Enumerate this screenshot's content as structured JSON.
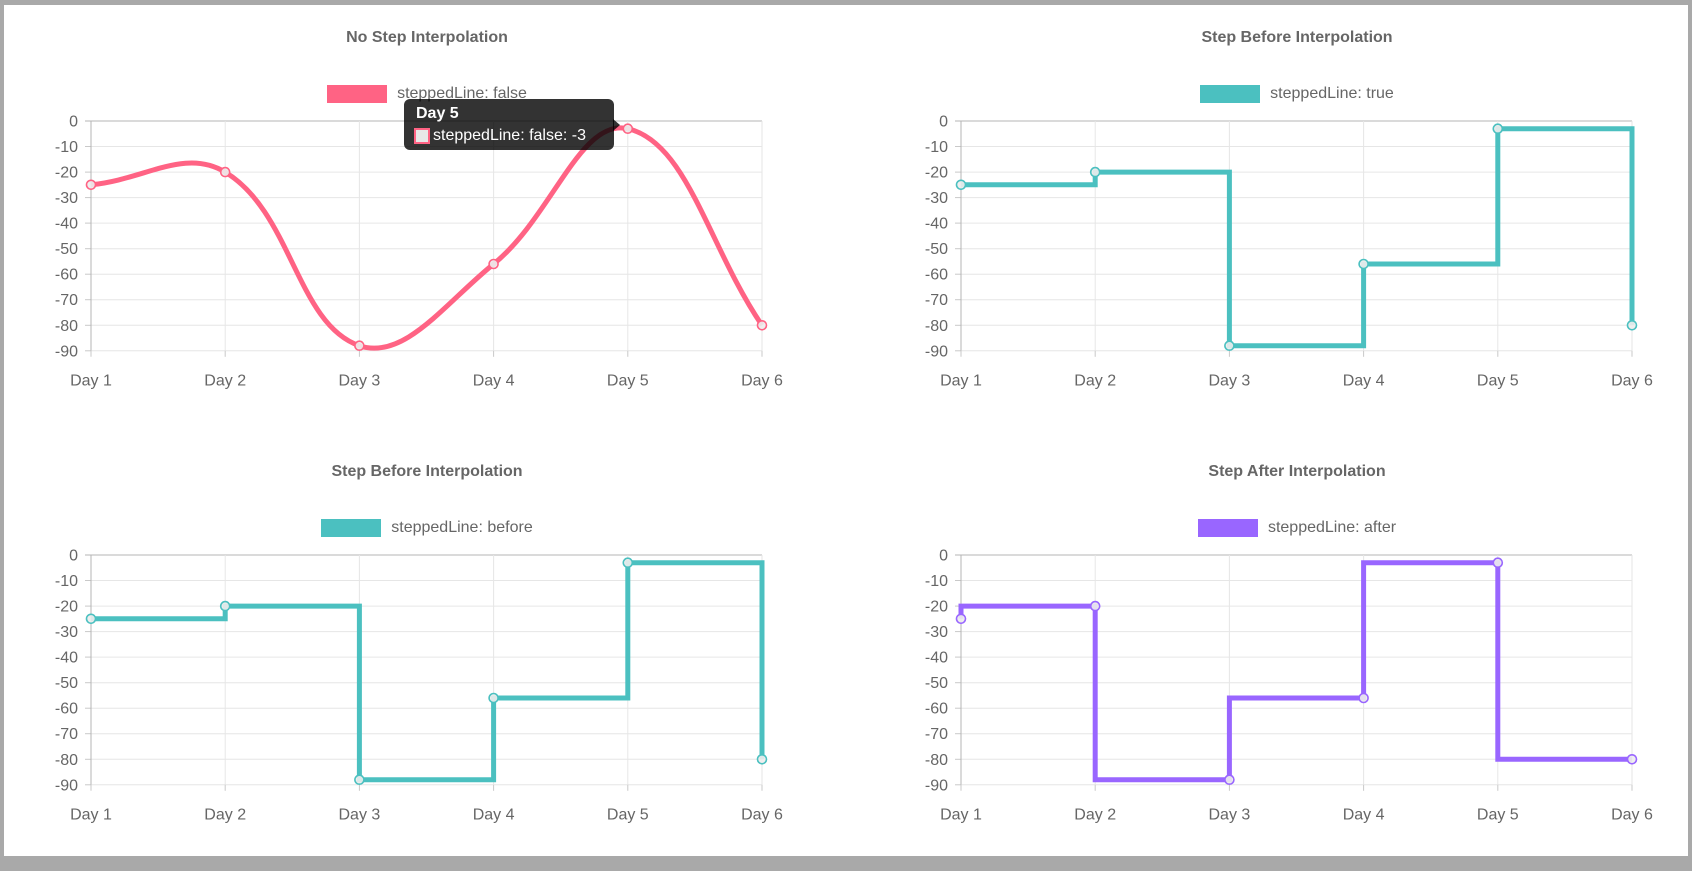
{
  "page": {
    "frame_color": "#a9a9a9",
    "background": "#ffffff",
    "text_color": "#666666",
    "gridline_color": "#e6e6e6",
    "axis_line_color": "#b4b4b4"
  },
  "chart_data": [
    {
      "type": "line",
      "title": "No Step Interpolation",
      "legend": {
        "label": "steppedLine: false",
        "color": "#ff6384"
      },
      "stepped": "none",
      "categories": [
        "Day 1",
        "Day 2",
        "Day 3",
        "Day 4",
        "Day 5",
        "Day 6"
      ],
      "values": [
        -25,
        -20,
        -88,
        -56,
        -3,
        -80
      ],
      "ylim": [
        0,
        -90
      ],
      "yticks": [
        0,
        -10,
        -20,
        -30,
        -40,
        -50,
        -60,
        -70,
        -80,
        -90
      ],
      "grid": true,
      "legend_position": "top",
      "tooltip": {
        "title": "Day 5",
        "label": "steppedLine: false: -3",
        "value": -3,
        "swatch_fill": "#e8e8e8",
        "swatch_border": "#ff6384"
      }
    },
    {
      "type": "line",
      "title": "Step Before Interpolation",
      "legend": {
        "label": "steppedLine: true",
        "color": "#4bc0c0"
      },
      "stepped": "before",
      "categories": [
        "Day 1",
        "Day 2",
        "Day 3",
        "Day 4",
        "Day 5",
        "Day 6"
      ],
      "values": [
        -25,
        -20,
        -88,
        -56,
        -3,
        -80
      ],
      "ylim": [
        0,
        -90
      ],
      "yticks": [
        0,
        -10,
        -20,
        -30,
        -40,
        -50,
        -60,
        -70,
        -80,
        -90
      ],
      "grid": true,
      "legend_position": "top"
    },
    {
      "type": "line",
      "title": "Step Before Interpolation",
      "legend": {
        "label": "steppedLine: before",
        "color": "#4bc0c0"
      },
      "stepped": "before",
      "categories": [
        "Day 1",
        "Day 2",
        "Day 3",
        "Day 4",
        "Day 5",
        "Day 6"
      ],
      "values": [
        -25,
        -20,
        -88,
        -56,
        -3,
        -80
      ],
      "ylim": [
        0,
        -90
      ],
      "yticks": [
        0,
        -10,
        -20,
        -30,
        -40,
        -50,
        -60,
        -70,
        -80,
        -90
      ],
      "grid": true,
      "legend_position": "top"
    },
    {
      "type": "line",
      "title": "Step After Interpolation",
      "legend": {
        "label": "steppedLine: after",
        "color": "#9966ff"
      },
      "stepped": "after",
      "categories": [
        "Day 1",
        "Day 2",
        "Day 3",
        "Day 4",
        "Day 5",
        "Day 6"
      ],
      "values": [
        -25,
        -20,
        -88,
        -56,
        -3,
        -80
      ],
      "ylim": [
        0,
        -90
      ],
      "yticks": [
        0,
        -10,
        -20,
        -30,
        -40,
        -50,
        -60,
        -70,
        -80,
        -90
      ],
      "grid": true,
      "legend_position": "top"
    }
  ]
}
